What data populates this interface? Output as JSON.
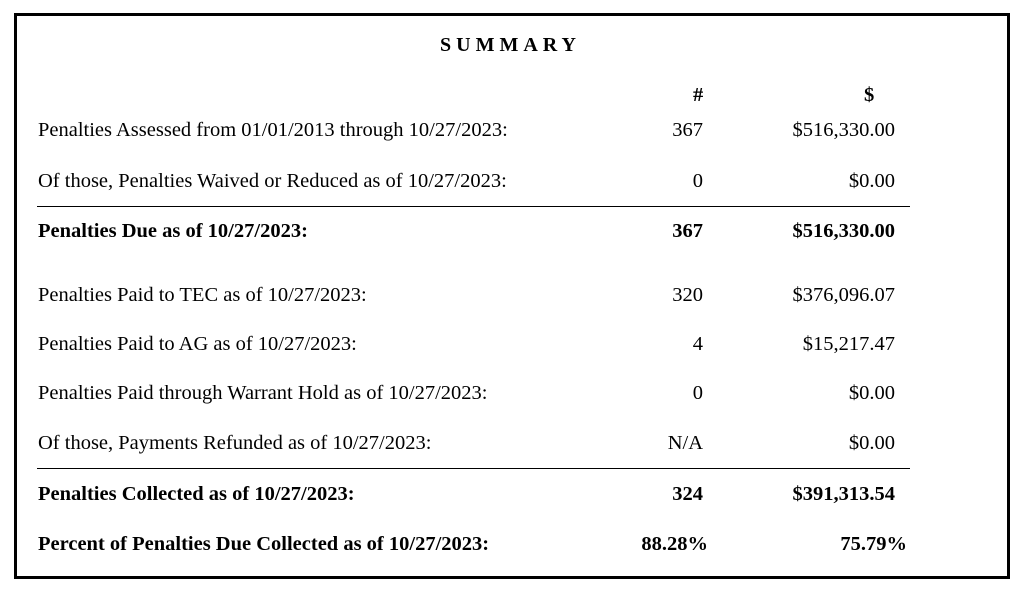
{
  "title": "SUMMARY",
  "columns": {
    "count": "#",
    "amount": "$"
  },
  "rows": [
    {
      "label": "Penalties Assessed from 01/01/2013 through 10/27/2023:",
      "count": "367",
      "amount": "$516,330.00",
      "bold": false
    },
    {
      "label": "Of those, Penalties Waived or Reduced as of 10/27/2023:",
      "count": "0",
      "amount": "$0.00",
      "bold": false
    },
    {
      "label": "Penalties Due as of 10/27/2023:",
      "count": "367",
      "amount": "$516,330.00",
      "bold": true
    },
    {
      "label": "Penalties Paid to TEC as of 10/27/2023:",
      "count": "320",
      "amount": "$376,096.07",
      "bold": false
    },
    {
      "label": "Penalties Paid to AG as of 10/27/2023:",
      "count": "4",
      "amount": "$15,217.47",
      "bold": false
    },
    {
      "label": "Penalties Paid through Warrant Hold as of 10/27/2023:",
      "count": "0",
      "amount": "$0.00",
      "bold": false
    },
    {
      "label": "Of those, Payments Refunded as of 10/27/2023:",
      "count": "N/A",
      "amount": "$0.00",
      "bold": false
    },
    {
      "label": "Penalties Collected as of  10/27/2023:",
      "count": "324",
      "amount": "$391,313.54",
      "bold": true
    },
    {
      "label": "Percent of Penalties Due Collected as of  10/27/2023:",
      "count": "88.28%",
      "amount": "75.79%",
      "bold": true
    }
  ]
}
